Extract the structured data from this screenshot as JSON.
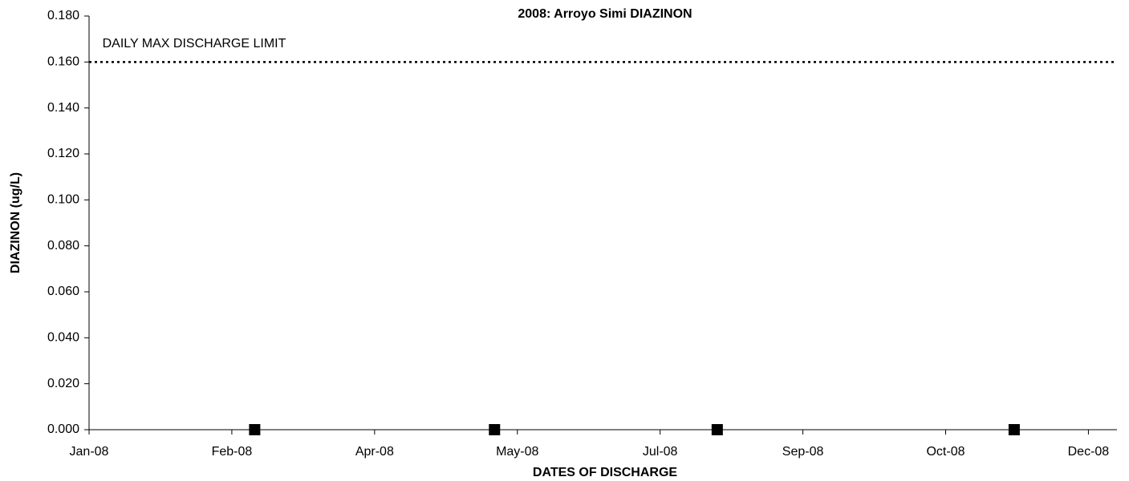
{
  "chart_data": {
    "type": "scatter",
    "title": "2008: Arroyo Simi DIAZINON",
    "x_label": "DATES OF DISCHARGE",
    "y_label": "DIAZINON (ug/L)",
    "x": [
      58,
      142,
      220,
      324
    ],
    "values": [
      0,
      0,
      0,
      0
    ],
    "color": "#000000",
    "marker": "square",
    "xlim": [
      0,
      360
    ],
    "xticks": [
      {
        "value": 0,
        "label": "Jan-08"
      },
      {
        "value": 50,
        "label": "Feb-08"
      },
      {
        "value": 100,
        "label": "Apr-08"
      },
      {
        "value": 150,
        "label": "May-08"
      },
      {
        "value": 200,
        "label": "Jul-08"
      },
      {
        "value": 250,
        "label": "Sep-08"
      },
      {
        "value": 300,
        "label": "Oct-08"
      },
      {
        "value": 350,
        "label": "Dec-08"
      }
    ],
    "ylim": [
      0,
      0.18
    ],
    "yticks": [
      {
        "value": 0,
        "label": "0.000"
      },
      {
        "value": 0.02,
        "label": "0.020"
      },
      {
        "value": 0.04,
        "label": "0.040"
      },
      {
        "value": 0.06,
        "label": "0.060"
      },
      {
        "value": 0.08,
        "label": "0.080"
      },
      {
        "value": 0.1,
        "label": "0.100"
      },
      {
        "value": 0.12,
        "label": "0.120"
      },
      {
        "value": 0.14,
        "label": "0.140"
      },
      {
        "value": 0.16,
        "label": "0.160"
      },
      {
        "value": 0.18,
        "label": "0.180"
      }
    ],
    "grid": false,
    "reference_lines": [
      {
        "value": 0.16,
        "label": "DAILY MAX DISCHARGE LIMIT"
      }
    ]
  }
}
